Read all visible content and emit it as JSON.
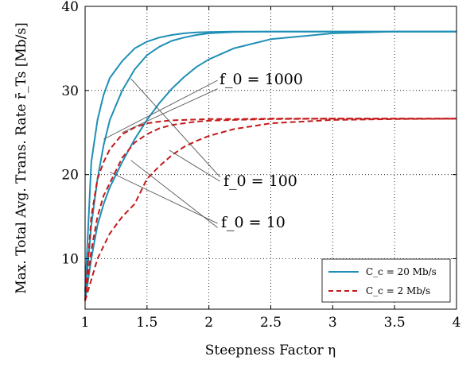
{
  "chart_data": {
    "type": "line",
    "xlabel": "Steepness Factor η",
    "ylabel": "Max. Total Avg. Trans. Rate r̄_Ts [Mb/s]",
    "xlim": [
      1,
      4
    ],
    "ylim": [
      4,
      40
    ],
    "xticks": [
      "1",
      "1.5",
      "2",
      "2.5",
      "3",
      "3.5",
      "4"
    ],
    "yticks": [
      "10",
      "20",
      "30",
      "40"
    ],
    "grid": true,
    "legend_position": "bottom-right",
    "legend": [
      "C_c = 20 Mb/s",
      "C_c = 2 Mb/s"
    ],
    "colors": {
      "blue": "#1f8fb5",
      "red": "#c41a1a"
    },
    "annotations": [
      "f_0 = 1000",
      "f_0 = 100",
      "f_0 = 10"
    ],
    "series": [
      {
        "group": "C_c = 20 Mb/s",
        "f0": "1000",
        "color": "#1f8fb5",
        "dash": "solid",
        "x": [
          1,
          1.05,
          1.1,
          1.15,
          1.2,
          1.3,
          1.4,
          1.5,
          1.6,
          1.7,
          1.8,
          1.9,
          2,
          2.2,
          2.5,
          3,
          3.5,
          4
        ],
        "y": [
          6,
          21.5,
          26.5,
          29.5,
          31.5,
          33.5,
          35,
          35.8,
          36.3,
          36.6,
          36.8,
          36.9,
          36.95,
          37,
          37,
          37,
          37,
          37
        ]
      },
      {
        "group": "C_c = 20 Mb/s",
        "f0": "100",
        "color": "#1f8fb5",
        "dash": "solid",
        "x": [
          1,
          1.05,
          1.1,
          1.15,
          1.2,
          1.3,
          1.4,
          1.5,
          1.6,
          1.7,
          1.8,
          1.9,
          2,
          2.2,
          2.5,
          3,
          3.5,
          4
        ],
        "y": [
          5.5,
          14,
          19.5,
          23.5,
          26.5,
          30,
          32.5,
          34.2,
          35.2,
          35.9,
          36.3,
          36.6,
          36.8,
          36.95,
          37,
          37,
          37,
          37
        ]
      },
      {
        "group": "C_c = 20 Mb/s",
        "f0": "10",
        "color": "#1f8fb5",
        "dash": "solid",
        "x": [
          1,
          1.05,
          1.1,
          1.15,
          1.2,
          1.3,
          1.4,
          1.5,
          1.6,
          1.7,
          1.8,
          1.9,
          2,
          2.2,
          2.5,
          3,
          3.5,
          4
        ],
        "y": [
          5,
          10,
          14,
          16.5,
          18.5,
          21.5,
          24.2,
          26.5,
          28.5,
          30.2,
          31.6,
          32.8,
          33.7,
          35,
          36.1,
          36.8,
          37,
          37
        ]
      },
      {
        "group": "C_c = 2 Mb/s",
        "f0": "1000",
        "color": "#c41a1a",
        "dash": "dashed",
        "x": [
          1,
          1.05,
          1.1,
          1.15,
          1.2,
          1.3,
          1.4,
          1.5,
          1.6,
          1.7,
          1.8,
          1.9,
          2,
          2.2,
          2.5,
          3,
          3.5,
          4
        ],
        "y": [
          5,
          15,
          19.5,
          21.5,
          23,
          24.8,
          25.6,
          26.1,
          26.3,
          26.45,
          26.5,
          26.55,
          26.6,
          26.6,
          26.65,
          26.65,
          26.65,
          26.65
        ]
      },
      {
        "group": "C_c = 2 Mb/s",
        "f0": "100",
        "color": "#c41a1a",
        "dash": "dashed",
        "x": [
          1,
          1.05,
          1.1,
          1.15,
          1.2,
          1.3,
          1.4,
          1.5,
          1.6,
          1.7,
          1.8,
          1.9,
          2,
          2.2,
          2.5,
          3,
          3.5,
          4
        ],
        "y": [
          5,
          11,
          15,
          17.5,
          19,
          22,
          23.8,
          24.8,
          25.5,
          25.9,
          26.1,
          26.3,
          26.4,
          26.5,
          26.6,
          26.65,
          26.65,
          26.65
        ]
      },
      {
        "group": "C_c = 2 Mb/s",
        "f0": "10",
        "color": "#c41a1a",
        "dash": "dashed",
        "x": [
          1,
          1.05,
          1.1,
          1.15,
          1.2,
          1.3,
          1.4,
          1.5,
          1.6,
          1.7,
          1.8,
          1.9,
          2,
          2.2,
          2.5,
          3,
          3.5,
          4
        ],
        "y": [
          5,
          7.5,
          10,
          11.5,
          13,
          15,
          16.5,
          19.5,
          21,
          22.3,
          23.3,
          24,
          24.6,
          25.4,
          26.1,
          26.5,
          26.6,
          26.65
        ]
      }
    ]
  }
}
